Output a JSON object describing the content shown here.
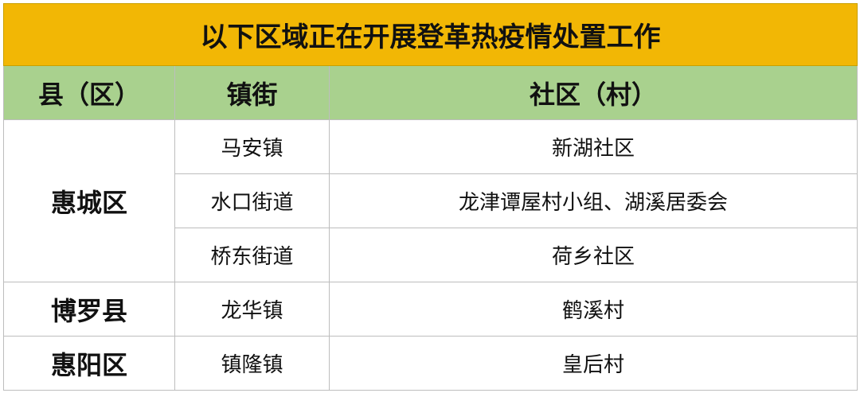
{
  "title": "以下区域正在开展登革热疫情处置工作",
  "colors": {
    "title_bg": "#f2b705",
    "header_bg": "#a9d18e",
    "border": "#bdbdbd"
  },
  "headers": [
    "县（区）",
    "镇街",
    "社区（村）"
  ],
  "groups": [
    {
      "county": "惠城区",
      "rows": [
        {
          "town": "马安镇",
          "community": "新湖社区"
        },
        {
          "town": "水口街道",
          "community": "龙津谭屋村小组、湖溪居委会"
        },
        {
          "town": "桥东街道",
          "community": "荷乡社区"
        }
      ]
    },
    {
      "county": "博罗县",
      "rows": [
        {
          "town": "龙华镇",
          "community": "鹤溪村"
        }
      ]
    },
    {
      "county": "惠阳区",
      "rows": [
        {
          "town": "镇隆镇",
          "community": "皇后村"
        }
      ]
    }
  ]
}
